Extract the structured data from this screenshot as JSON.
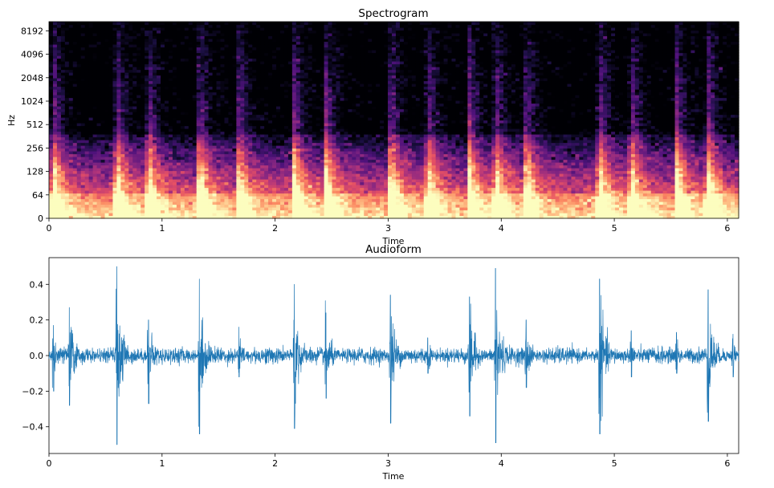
{
  "chart_data": [
    {
      "type": "heatmap",
      "title": "Spectrogram",
      "xlabel": "Time",
      "ylabel": "Hz",
      "xlim": [
        0,
        6.1
      ],
      "xticks": [
        "0",
        "1",
        "2",
        "3",
        "4",
        "5",
        "6"
      ],
      "yticks": [
        "0",
        "64",
        "128",
        "256",
        "512",
        "1024",
        "2048",
        "4096",
        "8192"
      ],
      "y_scale": "symlog",
      "colormap": "magma",
      "onset_times": [
        0.04,
        0.6,
        0.88,
        1.33,
        1.68,
        2.17,
        2.45,
        3.02,
        3.35,
        3.72,
        3.95,
        4.22,
        4.87,
        5.15,
        5.55,
        5.83
      ],
      "grid": false
    },
    {
      "type": "line",
      "title": "Audioform",
      "xlabel": "Time",
      "ylabel": "",
      "xlim": [
        0,
        6.1
      ],
      "ylim": [
        -0.55,
        0.55
      ],
      "xticks": [
        "0",
        "1",
        "2",
        "3",
        "4",
        "5",
        "6"
      ],
      "yticks": [
        "−0.4",
        "−0.2",
        "0.0",
        "0.2",
        "0.4"
      ],
      "line_color": "#1f77b4",
      "peaks": [
        {
          "t": 0.04,
          "max": 0.17,
          "min": -0.2
        },
        {
          "t": 0.18,
          "max": 0.27,
          "min": -0.28
        },
        {
          "t": 0.6,
          "max": 0.5,
          "min": -0.5
        },
        {
          "t": 0.88,
          "max": 0.2,
          "min": -0.27
        },
        {
          "t": 1.33,
          "max": 0.43,
          "min": -0.44
        },
        {
          "t": 1.68,
          "max": 0.16,
          "min": -0.12
        },
        {
          "t": 2.17,
          "max": 0.4,
          "min": -0.41
        },
        {
          "t": 2.45,
          "max": 0.24,
          "min": -0.24
        },
        {
          "t": 3.02,
          "max": 0.34,
          "min": -0.38
        },
        {
          "t": 3.35,
          "max": 0.1,
          "min": -0.1
        },
        {
          "t": 3.72,
          "max": 0.33,
          "min": -0.34
        },
        {
          "t": 3.95,
          "max": 0.49,
          "min": -0.49
        },
        {
          "t": 4.22,
          "max": 0.2,
          "min": -0.18
        },
        {
          "t": 4.87,
          "max": 0.43,
          "min": -0.44
        },
        {
          "t": 5.15,
          "max": 0.14,
          "min": -0.12
        },
        {
          "t": 5.55,
          "max": 0.13,
          "min": -0.1
        },
        {
          "t": 5.83,
          "max": 0.37,
          "min": -0.37
        },
        {
          "t": 6.05,
          "max": 0.12,
          "min": -0.12
        }
      ]
    }
  ]
}
